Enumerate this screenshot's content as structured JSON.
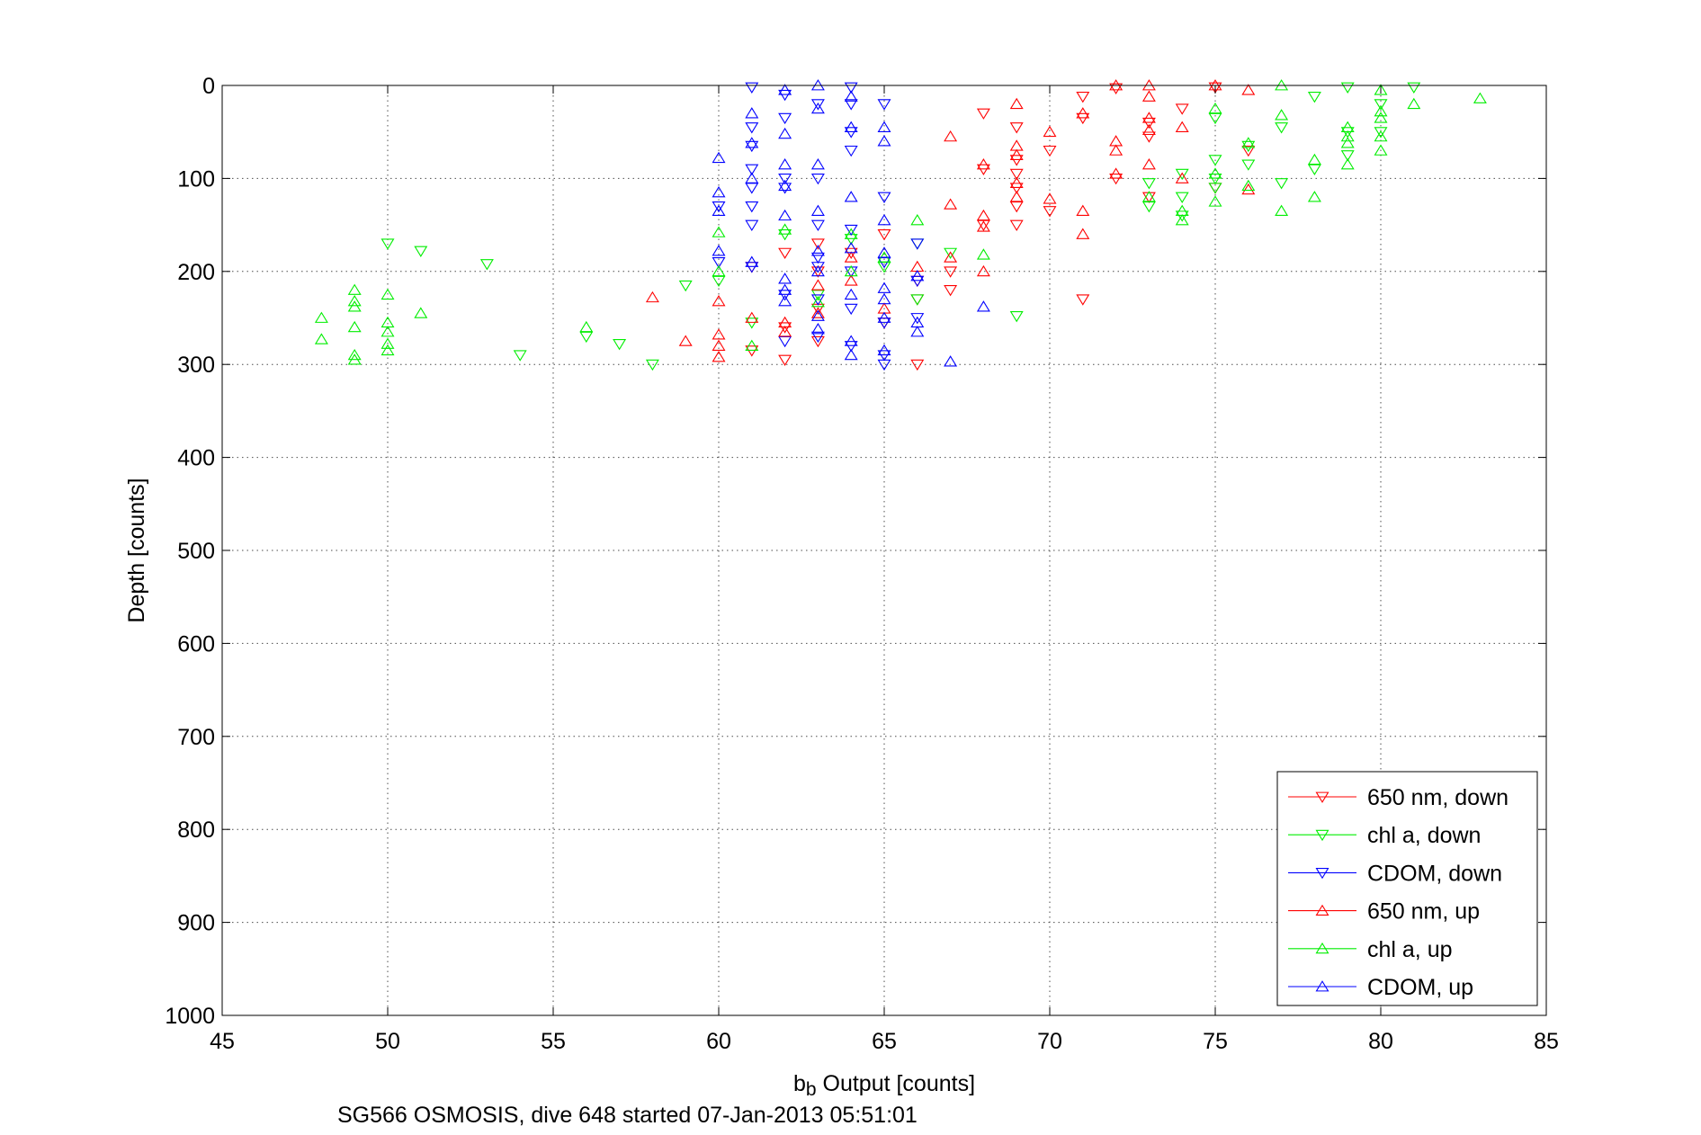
{
  "chart_data": {
    "type": "scatter",
    "title": "",
    "xlabel_main": "b",
    "xlabel_sub": "b",
    "xlabel_rest": " Output [counts]",
    "ylabel": "Depth [counts]",
    "caption": "SG566 OSMOSIS, dive 648 started 07-Jan-2013 05:51:01",
    "xlim": [
      45,
      85
    ],
    "ylim": [
      0,
      1000
    ],
    "y_reversed": true,
    "grid": true,
    "legend_position": "bottom-right",
    "xticks": [
      "45",
      "50",
      "55",
      "60",
      "65",
      "70",
      "75",
      "80",
      "85"
    ],
    "yticks": [
      "0",
      "100",
      "200",
      "300",
      "400",
      "500",
      "600",
      "700",
      "800",
      "900",
      "1000"
    ],
    "series": [
      {
        "name": "650 nm, down",
        "color": "#ff0000",
        "marker": "triangle-down",
        "points": [
          [
            75,
            2
          ],
          [
            73,
            40
          ],
          [
            74,
            25
          ],
          [
            71,
            12
          ],
          [
            72,
            3
          ],
          [
            69,
            45
          ],
          [
            69,
            80
          ],
          [
            69,
            95
          ],
          [
            70,
            70
          ],
          [
            71,
            35
          ],
          [
            73,
            55
          ],
          [
            73,
            120
          ],
          [
            72,
            100
          ],
          [
            69,
            110
          ],
          [
            69,
            130
          ],
          [
            69,
            150
          ],
          [
            68,
            90
          ],
          [
            68,
            150
          ],
          [
            67,
            200
          ],
          [
            67,
            220
          ],
          [
            66,
            230
          ],
          [
            65,
            160
          ],
          [
            64,
            180
          ],
          [
            63,
            170
          ],
          [
            63,
            200
          ],
          [
            62,
            180
          ],
          [
            62,
            260
          ],
          [
            63,
            240
          ],
          [
            63,
            275
          ],
          [
            61,
            195
          ],
          [
            61,
            285
          ],
          [
            62,
            295
          ],
          [
            66,
            210
          ],
          [
            65,
            255
          ],
          [
            66,
            300
          ],
          [
            71,
            230
          ],
          [
            70,
            135
          ],
          [
            68,
            30
          ],
          [
            75,
            110
          ],
          [
            76,
            70
          ]
        ]
      },
      {
        "name": "chl a, down",
        "color": "#00ee00",
        "marker": "triangle-down",
        "points": [
          [
            50,
            170
          ],
          [
            51,
            178
          ],
          [
            53,
            192
          ],
          [
            54,
            290
          ],
          [
            56,
            270
          ],
          [
            57,
            278
          ],
          [
            58,
            300
          ],
          [
            59,
            215
          ],
          [
            60,
            210
          ],
          [
            61,
            255
          ],
          [
            62,
            160
          ],
          [
            63,
            225
          ],
          [
            64,
            165
          ],
          [
            65,
            195
          ],
          [
            66,
            230
          ],
          [
            66,
            170
          ],
          [
            67,
            180
          ],
          [
            69,
            248
          ],
          [
            73,
            105
          ],
          [
            74,
            95
          ],
          [
            74,
            120
          ],
          [
            73,
            130
          ],
          [
            75,
            35
          ],
          [
            75,
            80
          ],
          [
            75,
            100
          ],
          [
            75,
            110
          ],
          [
            76,
            65
          ],
          [
            77,
            45
          ],
          [
            78,
            12
          ],
          [
            78,
            90
          ],
          [
            79,
            2
          ],
          [
            79,
            50
          ],
          [
            79,
            75
          ],
          [
            80,
            20
          ],
          [
            80,
            50
          ],
          [
            81,
            2
          ],
          [
            76,
            85
          ],
          [
            77,
            105
          ],
          [
            74,
            140
          ]
        ]
      },
      {
        "name": "CDOM, down",
        "color": "#0000ff",
        "marker": "triangle-down",
        "points": [
          [
            61,
            2
          ],
          [
            61,
            45
          ],
          [
            61,
            65
          ],
          [
            61,
            90
          ],
          [
            61,
            110
          ],
          [
            61,
            130
          ],
          [
            61,
            150
          ],
          [
            61,
            195
          ],
          [
            62,
            10
          ],
          [
            62,
            35
          ],
          [
            62,
            100
          ],
          [
            62,
            110
          ],
          [
            62,
            225
          ],
          [
            62,
            275
          ],
          [
            63,
            20
          ],
          [
            63,
            100
          ],
          [
            63,
            150
          ],
          [
            63,
            185
          ],
          [
            63,
            195
          ],
          [
            63,
            230
          ],
          [
            64,
            2
          ],
          [
            64,
            20
          ],
          [
            64,
            50
          ],
          [
            64,
            70
          ],
          [
            64,
            155
          ],
          [
            64,
            200
          ],
          [
            64,
            240
          ],
          [
            64,
            280
          ],
          [
            65,
            20
          ],
          [
            65,
            120
          ],
          [
            65,
            190
          ],
          [
            65,
            255
          ],
          [
            65,
            290
          ],
          [
            65,
            300
          ],
          [
            66,
            170
          ],
          [
            66,
            210
          ],
          [
            66,
            250
          ],
          [
            60,
            130
          ],
          [
            60,
            190
          ],
          [
            63,
            270
          ]
        ]
      },
      {
        "name": "650 nm, up",
        "color": "#ff0000",
        "marker": "triangle-up",
        "points": [
          [
            58,
            228
          ],
          [
            59,
            275
          ],
          [
            60,
            232
          ],
          [
            60,
            268
          ],
          [
            60,
            280
          ],
          [
            60,
            292
          ],
          [
            61,
            250
          ],
          [
            62,
            255
          ],
          [
            62,
            265
          ],
          [
            63,
            245
          ],
          [
            63,
            215
          ],
          [
            64,
            185
          ],
          [
            64,
            210
          ],
          [
            65,
            240
          ],
          [
            66,
            195
          ],
          [
            67,
            55
          ],
          [
            67,
            128
          ],
          [
            67,
            185
          ],
          [
            68,
            140
          ],
          [
            68,
            152
          ],
          [
            68,
            200
          ],
          [
            68,
            85
          ],
          [
            69,
            20
          ],
          [
            69,
            65
          ],
          [
            69,
            75
          ],
          [
            69,
            105
          ],
          [
            69,
            120
          ],
          [
            70,
            50
          ],
          [
            70,
            122
          ],
          [
            71,
            30
          ],
          [
            71,
            135
          ],
          [
            71,
            160
          ],
          [
            72,
            0
          ],
          [
            72,
            60
          ],
          [
            72,
            70
          ],
          [
            72,
            95
          ],
          [
            73,
            0
          ],
          [
            73,
            12
          ],
          [
            73,
            35
          ],
          [
            73,
            48
          ],
          [
            73,
            85
          ],
          [
            74,
            100
          ],
          [
            74,
            45
          ],
          [
            75,
            0
          ],
          [
            76,
            5
          ],
          [
            76,
            112
          ]
        ]
      },
      {
        "name": "chl a, up",
        "color": "#00ee00",
        "marker": "triangle-up",
        "points": [
          [
            48,
            250
          ],
          [
            48,
            273
          ],
          [
            49,
            220
          ],
          [
            49,
            232
          ],
          [
            49,
            238
          ],
          [
            49,
            260
          ],
          [
            49,
            290
          ],
          [
            49,
            295
          ],
          [
            50,
            255
          ],
          [
            50,
            265
          ],
          [
            50,
            278
          ],
          [
            50,
            285
          ],
          [
            50,
            225
          ],
          [
            51,
            245
          ],
          [
            56,
            260
          ],
          [
            60,
            158
          ],
          [
            60,
            200
          ],
          [
            61,
            280
          ],
          [
            62,
            155
          ],
          [
            63,
            233
          ],
          [
            64,
            160
          ],
          [
            64,
            200
          ],
          [
            65,
            185
          ],
          [
            66,
            145
          ],
          [
            68,
            182
          ],
          [
            73,
            120
          ],
          [
            74,
            135
          ],
          [
            74,
            145
          ],
          [
            75,
            25
          ],
          [
            75,
            95
          ],
          [
            75,
            125
          ],
          [
            76,
            108
          ],
          [
            76,
            62
          ],
          [
            77,
            0
          ],
          [
            77,
            32
          ],
          [
            77,
            135
          ],
          [
            78,
            80
          ],
          [
            78,
            120
          ],
          [
            79,
            45
          ],
          [
            79,
            55
          ],
          [
            79,
            62
          ],
          [
            79,
            85
          ],
          [
            80,
            5
          ],
          [
            80,
            28
          ],
          [
            80,
            35
          ],
          [
            80,
            55
          ],
          [
            80,
            70
          ],
          [
            81,
            20
          ],
          [
            83,
            14
          ]
        ]
      },
      {
        "name": "CDOM, up",
        "color": "#0000ff",
        "marker": "triangle-up",
        "points": [
          [
            60,
            78
          ],
          [
            60,
            115
          ],
          [
            60,
            135
          ],
          [
            60,
            178
          ],
          [
            61,
            30
          ],
          [
            61,
            62
          ],
          [
            61,
            100
          ],
          [
            61,
            190
          ],
          [
            62,
            5
          ],
          [
            62,
            52
          ],
          [
            62,
            85
          ],
          [
            62,
            108
          ],
          [
            62,
            140
          ],
          [
            62,
            208
          ],
          [
            62,
            220
          ],
          [
            62,
            232
          ],
          [
            63,
            0
          ],
          [
            63,
            25
          ],
          [
            63,
            85
          ],
          [
            63,
            135
          ],
          [
            63,
            178
          ],
          [
            63,
            200
          ],
          [
            63,
            248
          ],
          [
            63,
            262
          ],
          [
            64,
            12
          ],
          [
            64,
            45
          ],
          [
            64,
            120
          ],
          [
            64,
            175
          ],
          [
            64,
            225
          ],
          [
            64,
            275
          ],
          [
            64,
            290
          ],
          [
            65,
            45
          ],
          [
            65,
            60
          ],
          [
            65,
            145
          ],
          [
            65,
            180
          ],
          [
            65,
            218
          ],
          [
            65,
            230
          ],
          [
            65,
            250
          ],
          [
            65,
            285
          ],
          [
            66,
            205
          ],
          [
            66,
            255
          ],
          [
            66,
            265
          ],
          [
            67,
            297
          ],
          [
            68,
            238
          ]
        ]
      }
    ]
  }
}
